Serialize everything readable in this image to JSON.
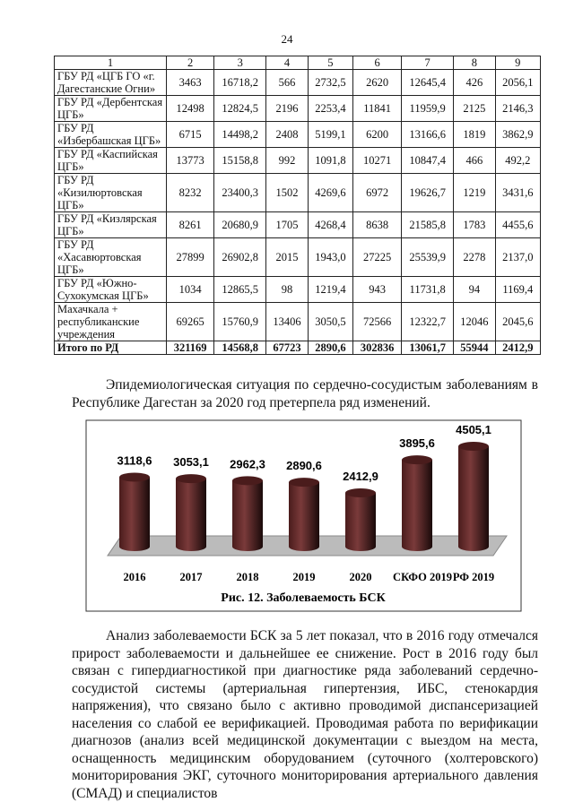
{
  "page_number": "24",
  "table": {
    "header": [
      "1",
      "2",
      "3",
      "4",
      "5",
      "6",
      "7",
      "8",
      "9"
    ],
    "rows": [
      [
        "ГБУ РД «ЦГБ ГО «г. Дагестанские Огни»",
        "3463",
        "16718,2",
        "566",
        "2732,5",
        "2620",
        "12645,4",
        "426",
        "2056,1"
      ],
      [
        "ГБУ РД «Дербентская ЦГБ»",
        "12498",
        "12824,5",
        "2196",
        "2253,4",
        "11841",
        "11959,9",
        "2125",
        "2146,3"
      ],
      [
        "ГБУ РД «Избербашская ЦГБ»",
        "6715",
        "14498,2",
        "2408",
        "5199,1",
        "6200",
        "13166,6",
        "1819",
        "3862,9"
      ],
      [
        "ГБУ РД «Каспийская ЦГБ»",
        "13773",
        "15158,8",
        "992",
        "1091,8",
        "10271",
        "10847,4",
        "466",
        "492,2"
      ],
      [
        "ГБУ РД «Кизилюртовская ЦГБ»",
        "8232",
        "23400,3",
        "1502",
        "4269,6",
        "6972",
        "19626,7",
        "1219",
        "3431,6"
      ],
      [
        "ГБУ РД «Кизлярская ЦГБ»",
        "8261",
        "20680,9",
        "1705",
        "4268,4",
        "8638",
        "21585,8",
        "1783",
        "4455,6"
      ],
      [
        "ГБУ РД «Хасавюртовская ЦГБ»",
        "27899",
        "26902,8",
        "2015",
        "1943,0",
        "27225",
        "25539,9",
        "2278",
        "2137,0"
      ],
      [
        "ГБУ РД «Южно-Сухокумская ЦГБ»",
        "1034",
        "12865,5",
        "98",
        "1219,4",
        "943",
        "11731,8",
        "94",
        "1169,4"
      ],
      [
        "Махачкала + республиканские учреждения",
        "69265",
        "15760,9",
        "13406",
        "3050,5",
        "72566",
        "12322,7",
        "12046",
        "2045,6"
      ],
      [
        "Итого по РД",
        "321169",
        "14568,8",
        "67723",
        "2890,6",
        "302836",
        "13061,7",
        "55944",
        "2412,9"
      ]
    ]
  },
  "paragraph_1": "Эпидемиологическая ситуация по сердечно-сосудистым заболеваниям в Республике Дагестан за 2020 год претерпела ряд изменений.",
  "figure": {
    "caption": "Рис. 12. Заболеваемость БСК",
    "chart": {
      "type": "bar",
      "categories": [
        "2016",
        "2017",
        "2018",
        "2019",
        "2020",
        "СКФО 2019",
        "РФ 2019"
      ],
      "values": [
        3118.6,
        3053.1,
        2962.3,
        2890.6,
        2412.9,
        3895.6,
        4505.1
      ],
      "value_labels": [
        "3118,6",
        "3053,1",
        "2962,3",
        "2890,6",
        "2412,9",
        "3895,6",
        "4505,1"
      ],
      "color": "#4a1c1c"
    }
  },
  "paragraph_2": "Анализ заболеваемости БСК за 5 лет показал, что в 2016 году отмечался прирост заболеваемости и дальнейшее ее снижение. Рост в 2016 году был связан с гипердиагностикой при диагностике ряда заболеваний сердечно-сосудистой системы (артериальная гипертензия, ИБС, стенокардия напряжения), что связано было с активно проводимой диспансеризацией населения со слабой ее верификацией. Проводимая работа по верификации диагнозов (анализ всей медицинской документации с выездом на места, оснащенность медицинским оборудованием (суточного (холтеровского) мониторирования ЭКГ, суточного мониторирования артериального давления (СМАД) и специалистов"
}
